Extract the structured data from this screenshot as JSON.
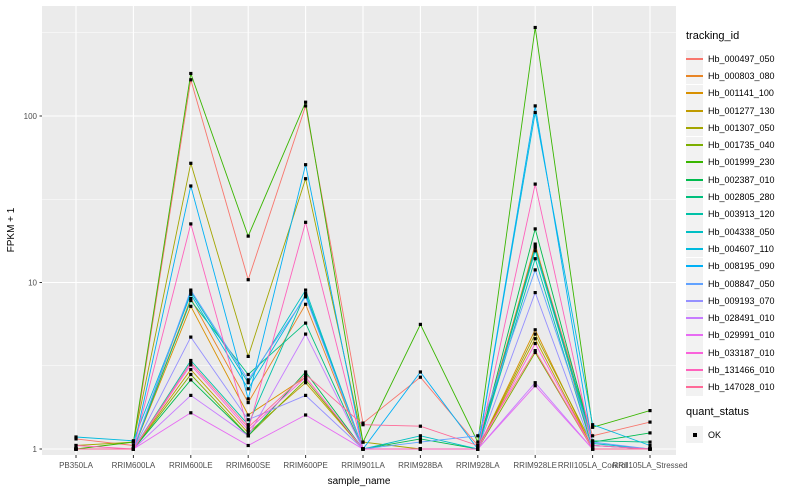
{
  "figure": {
    "legend1_title": "tracking_id",
    "legend2_title": "quant_status",
    "quant_ok_label": "OK",
    "y_tick_labels": [
      "1",
      "10",
      "100"
    ]
  },
  "chart_data": {
    "type": "line",
    "title": "",
    "xlabel": "sample_name",
    "ylabel": "FPKM + 1",
    "y_scale": "log10",
    "ylim": [
      1,
      400
    ],
    "y_major_ticks": [
      1,
      10,
      100
    ],
    "y_minor_ticks": [
      3.1623,
      31.623,
      316.23
    ],
    "grid": true,
    "legend_position": "right",
    "marker": "black-square",
    "marker_legend": {
      "quant_status": "OK"
    },
    "categories": [
      "PB350LA",
      "RRIM600LA",
      "RRIM600LE",
      "RRIM600SE",
      "RRIM600PE",
      "RRIM901LA",
      "RRIM928BA",
      "RRIM928LA",
      "RRIM928LE",
      "RRII105LA_Control",
      "RRII105LA_Stressed"
    ],
    "series": [
      {
        "name": "Hb_000497_050",
        "color": "#F8766D",
        "values": [
          1.15,
          1.05,
          165,
          10.4,
          115,
          1.43,
          2.7,
          1.05,
          16.5,
          1.2,
          1.45
        ]
      },
      {
        "name": "Hb_000803_080",
        "color": "#E88526",
        "values": [
          1.0,
          1.0,
          8.0,
          1.9,
          7.4,
          1.0,
          1.0,
          1.0,
          17.0,
          1.0,
          1.0
        ]
      },
      {
        "name": "Hb_001141_100",
        "color": "#D89000",
        "values": [
          1.0,
          1.0,
          7.2,
          1.6,
          2.7,
          1.0,
          1.0,
          1.0,
          5.2,
          1.0,
          1.0
        ]
      },
      {
        "name": "Hb_001277_130",
        "color": "#C09B00",
        "values": [
          1.0,
          1.0,
          3.0,
          1.25,
          2.5,
          1.0,
          1.0,
          1.0,
          4.6,
          1.0,
          1.0
        ]
      },
      {
        "name": "Hb_001307_050",
        "color": "#A3A500",
        "values": [
          1.05,
          1.1,
          52,
          3.6,
          42,
          1.1,
          1.0,
          1.0,
          4.9,
          1.05,
          1.0
        ]
      },
      {
        "name": "Hb_001735_040",
        "color": "#7CAE00",
        "values": [
          1.0,
          1.0,
          2.8,
          1.2,
          2.6,
          1.0,
          1.0,
          1.0,
          3.8,
          1.0,
          1.0
        ]
      },
      {
        "name": "Hb_001999_230",
        "color": "#39B600",
        "values": [
          1.0,
          1.1,
          180,
          19,
          121,
          1.1,
          5.6,
          1.1,
          340,
          1.35,
          1.7
        ]
      },
      {
        "name": "Hb_002387_010",
        "color": "#00BB4E",
        "values": [
          1.0,
          1.0,
          2.6,
          1.2,
          2.9,
          1.0,
          1.15,
          1.0,
          21,
          1.1,
          1.25
        ]
      },
      {
        "name": "Hb_002805_280",
        "color": "#00BF7D",
        "values": [
          1.0,
          1.0,
          7.8,
          2.8,
          5.7,
          1.0,
          1.0,
          1.0,
          16.2,
          1.12,
          1.1
        ]
      },
      {
        "name": "Hb_003913_120",
        "color": "#00C1A7",
        "values": [
          1.0,
          1.0,
          3.4,
          1.4,
          8.6,
          1.0,
          1.0,
          1.0,
          13.9,
          1.0,
          1.0
        ]
      },
      {
        "name": "Hb_004338_050",
        "color": "#00BFC4",
        "values": [
          1.0,
          1.0,
          8.8,
          2.5,
          9.0,
          1.0,
          1.2,
          1.0,
          15.5,
          1.08,
          1.0
        ]
      },
      {
        "name": "Hb_004607_110",
        "color": "#00BADE",
        "values": [
          1.18,
          1.12,
          8.5,
          2.3,
          8.4,
          1.0,
          1.0,
          1.0,
          105,
          1.4,
          1.05
        ]
      },
      {
        "name": "Hb_008195_090",
        "color": "#00B0F6",
        "values": [
          1.0,
          1.0,
          38,
          2.0,
          51,
          1.0,
          2.9,
          1.0,
          115,
          1.05,
          1.0
        ]
      },
      {
        "name": "Hb_008847_050",
        "color": "#61A2FF",
        "values": [
          1.0,
          1.0,
          9.0,
          2.6,
          8.2,
          1.0,
          1.1,
          1.2,
          11.9,
          1.1,
          1.0
        ]
      },
      {
        "name": "Hb_009193_070",
        "color": "#9590FF",
        "values": [
          1.0,
          1.0,
          4.7,
          1.5,
          2.1,
          1.0,
          1.0,
          1.0,
          8.7,
          1.0,
          1.0
        ]
      },
      {
        "name": "Hb_028491_010",
        "color": "#C77CFF",
        "values": [
          1.0,
          1.0,
          2.1,
          1.2,
          4.9,
          1.0,
          1.0,
          1.0,
          2.5,
          1.0,
          1.0
        ]
      },
      {
        "name": "Hb_029991_010",
        "color": "#E76BF3",
        "values": [
          1.0,
          1.0,
          1.65,
          1.05,
          1.6,
          1.0,
          1.0,
          1.0,
          2.4,
          1.0,
          1.0
        ]
      },
      {
        "name": "Hb_033187_010",
        "color": "#FA62DB",
        "values": [
          1.0,
          1.0,
          3.2,
          1.3,
          2.7,
          1.0,
          1.0,
          1.0,
          4.3,
          1.0,
          1.0
        ]
      },
      {
        "name": "Hb_131466_010",
        "color": "#FF62BC",
        "values": [
          1.05,
          1.0,
          22.5,
          1.3,
          23,
          1.0,
          1.0,
          1.0,
          39,
          1.05,
          1.0
        ]
      },
      {
        "name": "Hb_147028_010",
        "color": "#FF6A98",
        "values": [
          1.0,
          1.0,
          3.3,
          1.35,
          2.8,
          1.4,
          1.37,
          1.05,
          3.9,
          1.0,
          1.0
        ]
      }
    ]
  },
  "theme": {
    "panel_bg": "#EBEBEB",
    "grid_color": "#FFFFFF",
    "tick_color": "#333333",
    "tick_label_color": "#4D4D4D",
    "point_color": "#000000",
    "legend_key_bg": "#F2F2F2"
  }
}
